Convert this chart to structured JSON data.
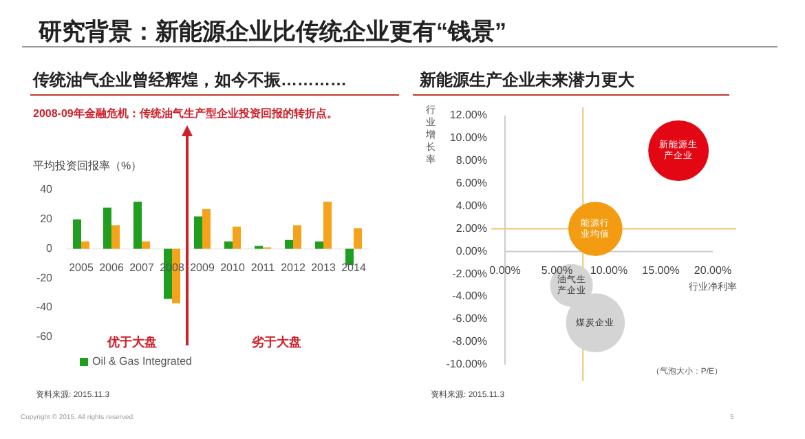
{
  "chart_data": [
    {
      "type": "bar",
      "title": "传统油气企业曾经辉煌，如今不振…………",
      "ylabel": "平均投资回报率（%）",
      "categories": [
        "2005",
        "2006",
        "2007",
        "2008",
        "2009",
        "2010",
        "2011",
        "2012",
        "2013",
        "2014"
      ],
      "series": [
        {
          "name": "Oil & Gas Integrated",
          "color": "#1f9e1f",
          "values": [
            20,
            28,
            32,
            -34,
            22,
            5,
            2,
            6,
            5,
            -11
          ]
        },
        {
          "color": "#f5a31a",
          "values": [
            5,
            16,
            5,
            -37,
            27,
            15,
            1,
            16,
            32,
            14
          ]
        }
      ],
      "ylim": [
        -60,
        40
      ],
      "yticks": [
        40,
        20,
        0,
        -20,
        -40,
        -60
      ],
      "grid": false,
      "legend": "bottom",
      "annotations": [
        "研究背景：新能源企业比传统企业更有“钱景”",
        "2008-09年金融危机：传统油气生产型企业投资回报的转折点。",
        "优于大盘",
        "劣于大盘",
        "资料来源: 2015.11.3",
        "Copyright © 2015. All rights reserved.",
        "5"
      ]
    },
    {
      "type": "bubble",
      "title": "新能源生产企业未来潜力更大",
      "xlabel": "行业净利率",
      "ylabel": "行业增长率",
      "series": [
        {
          "name": "新能源生产企业",
          "color": "#e30613",
          "x": [
            16.7
          ],
          "values": [
            8.9
          ],
          "sizes": [
            1
          ]
        },
        {
          "name": "能源行业均值",
          "color": "#f39c12",
          "x": [
            8.7
          ],
          "values": [
            2.0
          ],
          "sizes": [
            0.8
          ]
        },
        {
          "name": "油气生产企业",
          "color": "#d4d4d4",
          "x": [
            6.4
          ],
          "values": [
            -3.0
          ],
          "sizes": [
            0.5
          ]
        },
        {
          "name": "煤炭企业",
          "color": "#d4d4d4",
          "x": [
            8.7
          ],
          "values": [
            -6.3
          ],
          "sizes": [
            0.95
          ]
        }
      ],
      "xlim": [
        0,
        20
      ],
      "ylim": [
        -10,
        12
      ],
      "xticks": [
        {
          "value": 0,
          "label": "0.00%"
        },
        {
          "value": 5,
          "label": "5.00%"
        },
        {
          "value": 10,
          "label": "10.00%"
        },
        {
          "value": 15,
          "label": "15.00%"
        },
        {
          "value": 20,
          "label": "20.00%"
        }
      ],
      "yticks": [
        {
          "value": 12,
          "label": "12.00%"
        },
        {
          "value": 10,
          "label": "10.00%"
        },
        {
          "value": 8,
          "label": "8.00%"
        },
        {
          "value": 6,
          "label": "6.00%"
        },
        {
          "value": 4,
          "label": "4.00%"
        },
        {
          "value": 2,
          "label": "2.00%"
        },
        {
          "value": 0,
          "label": "0.00%"
        },
        {
          "value": -2,
          "label": "-2.00%"
        },
        {
          "value": -4,
          "label": "-4.00%"
        },
        {
          "value": -6,
          "label": "-6.00%"
        },
        {
          "value": -8,
          "label": "-8.00%"
        },
        {
          "value": -10,
          "label": "-10.00%"
        }
      ],
      "ref_lines": [
        {
          "axis": "x",
          "value": 7.5,
          "color": "#f0c46c"
        },
        {
          "axis": "y",
          "value": 2,
          "color": "#f0c46c"
        }
      ],
      "annotations": [
        "（气泡大小：P/E）",
        "资料来源: 2015.11.3"
      ]
    }
  ]
}
